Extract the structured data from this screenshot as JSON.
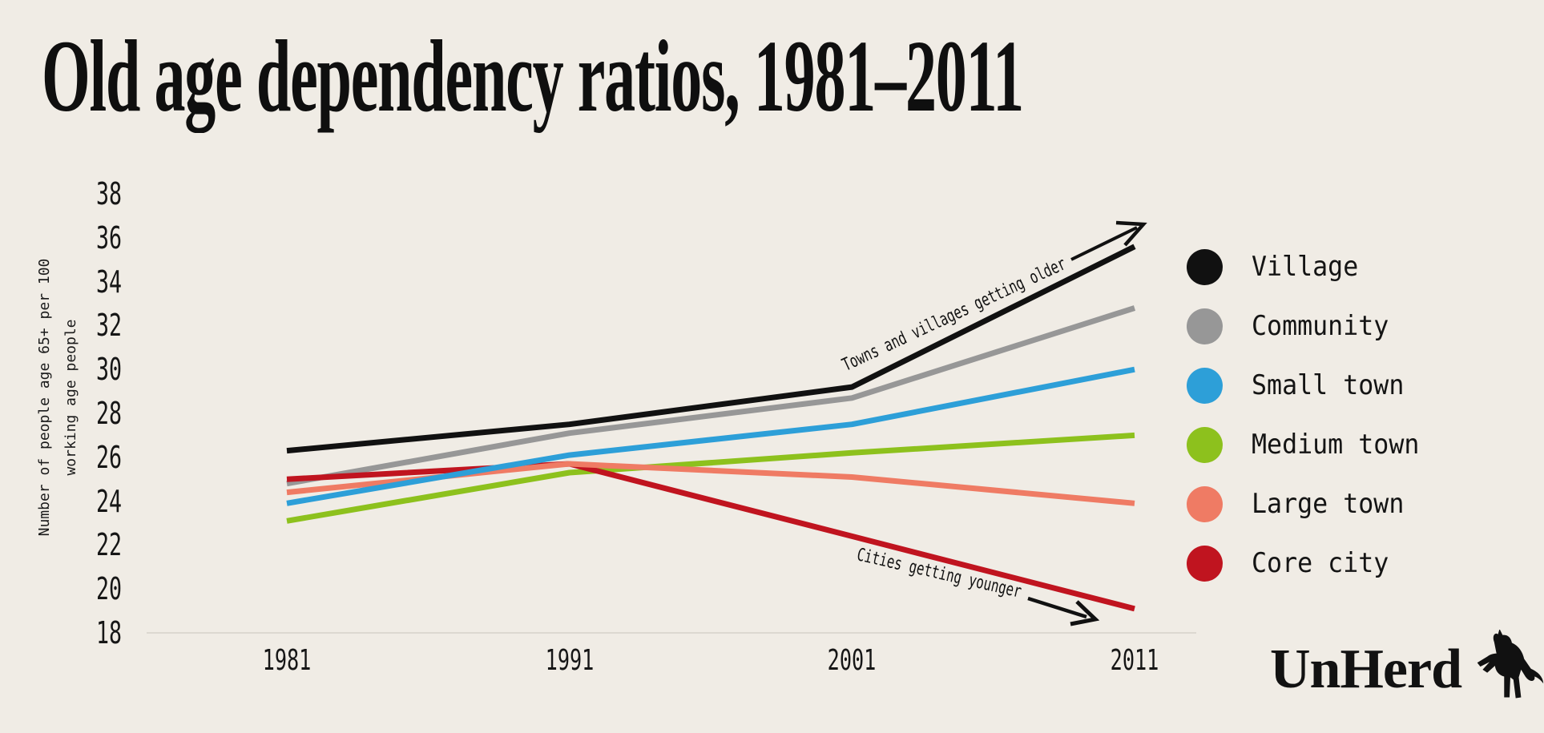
{
  "title": "Old age dependency ratios, 1981–2011",
  "y_axis": {
    "label_line1": "Number of people age 65+ per 100",
    "label_line2": "working age people",
    "ticks": [
      "38",
      "36",
      "34",
      "32",
      "30",
      "28",
      "26",
      "24",
      "22",
      "20",
      "18"
    ]
  },
  "x_axis": {
    "ticks": [
      "1981",
      "1991",
      "2001",
      "2011"
    ]
  },
  "legend": {
    "items": [
      {
        "label": "Village",
        "color": "#111111"
      },
      {
        "label": "Community",
        "color": "#979797"
      },
      {
        "label": "Small town",
        "color": "#2d9fd8"
      },
      {
        "label": "Medium town",
        "color": "#8dc11d"
      },
      {
        "label": "Large town",
        "color": "#ef7b64"
      },
      {
        "label": "Core city",
        "color": "#c0141f"
      }
    ]
  },
  "annotations": {
    "older": "Towns and villages getting older",
    "younger": "Cities getting younger"
  },
  "logo": {
    "wordmark": "UnHerd"
  },
  "colors": {
    "background": "#f0ece5",
    "axis_line": "#dcd8d0",
    "ink": "#131313"
  },
  "chart_data": {
    "type": "line",
    "title": "Old age dependency ratios, 1981–2011",
    "xlabel": "",
    "ylabel": "Number of people age 65+ per 100 working age people",
    "x": [
      1981,
      1991,
      2001,
      2011
    ],
    "series": [
      {
        "name": "Village",
        "color": "#111111",
        "values": [
          26.3,
          27.5,
          29.2,
          35.6
        ]
      },
      {
        "name": "Community",
        "color": "#979797",
        "values": [
          24.8,
          27.1,
          28.7,
          32.8
        ]
      },
      {
        "name": "Small town",
        "color": "#2d9fd8",
        "values": [
          23.9,
          26.1,
          27.5,
          30.0
        ]
      },
      {
        "name": "Medium town",
        "color": "#8dc11d",
        "values": [
          23.1,
          25.3,
          26.2,
          27.0
        ]
      },
      {
        "name": "Large town",
        "color": "#ef7b64",
        "values": [
          24.4,
          25.7,
          25.1,
          23.9
        ]
      },
      {
        "name": "Core city",
        "color": "#c0141f",
        "values": [
          25.0,
          25.7,
          22.4,
          19.1
        ]
      }
    ],
    "ylim": [
      18,
      38
    ],
    "yticks": [
      38,
      36,
      34,
      32,
      30,
      28,
      26,
      24,
      22,
      20,
      18
    ],
    "grid": false,
    "legend_position": "right",
    "annotations": [
      {
        "text": "Towns and villages getting older",
        "direction": "up"
      },
      {
        "text": "Cities getting younger",
        "direction": "down"
      }
    ]
  }
}
